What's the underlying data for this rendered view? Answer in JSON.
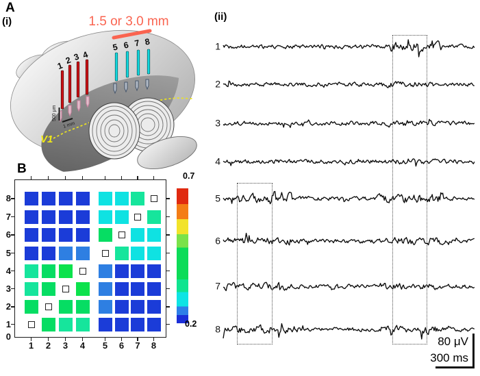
{
  "figure": {
    "panel_a": "A",
    "panel_i": "(i)",
    "panel_ii_label": "(ii)",
    "panel_b": "B"
  },
  "panel_i": {
    "distance_label": "1.5 or 3.0 mm",
    "region_label": "V1",
    "depth_scale": "500 μm",
    "spacing_scale": "1 mm",
    "electrode_labels_red": [
      "1",
      "2",
      "3",
      "4"
    ],
    "electrode_labels_cyan": [
      "5",
      "6",
      "7",
      "8"
    ],
    "colors": {
      "salmon": "#fa6450",
      "electrode_red": "#cf1216",
      "electrode_cyan": "#12d9de",
      "v1_yellow": "#f2ea16",
      "dashed_line_yellow": "#ece41e"
    }
  },
  "panel_ii": {
    "trace_labels": [
      "1",
      "2",
      "3",
      "4",
      "5",
      "6",
      "7",
      "8"
    ],
    "voltage_scale": "80 μV",
    "time_scale": "300 ms"
  },
  "chart_data": {
    "type": "heatmap",
    "title": "",
    "description": "Pairwise correlation between electrodes 1-8; diagonal self-pairs drawn as small open squares",
    "x_categories": [
      "1",
      "2",
      "3",
      "4",
      "5",
      "6",
      "7",
      "8"
    ],
    "y_categories": [
      "1",
      "2",
      "3",
      "4",
      "5",
      "6",
      "7",
      "8"
    ],
    "y_axis_extra_label": "0",
    "values_rows_bottom_to_top": [
      [
        null,
        0.45,
        0.42,
        0.42,
        0.24,
        0.24,
        0.24,
        0.24
      ],
      [
        0.45,
        null,
        0.45,
        0.45,
        0.31,
        0.24,
        0.24,
        0.24
      ],
      [
        0.42,
        0.45,
        null,
        0.47,
        0.31,
        0.24,
        0.24,
        0.24
      ],
      [
        0.42,
        0.45,
        0.47,
        null,
        0.31,
        0.24,
        0.24,
        0.24
      ],
      [
        0.24,
        0.24,
        0.31,
        0.31,
        null,
        0.42,
        0.37,
        0.37
      ],
      [
        0.24,
        0.24,
        0.24,
        0.24,
        0.45,
        null,
        0.37,
        0.37
      ],
      [
        0.24,
        0.24,
        0.24,
        0.24,
        0.37,
        0.37,
        null,
        0.42
      ],
      [
        0.24,
        0.24,
        0.24,
        0.24,
        0.37,
        0.37,
        0.42,
        null
      ]
    ],
    "cell_colors_rows_bottom_to_top": [
      [
        null,
        "#06dd63",
        "#16e59c",
        "#16e59c",
        "#1b3cd8",
        "#1b3cd8",
        "#1b3cd8",
        "#1b3cd8"
      ],
      [
        "#06dd63",
        null,
        "#06dd63",
        "#06dd63",
        "#2e7fe2",
        "#1b3cd8",
        "#1b3cd8",
        "#1b3cd8"
      ],
      [
        "#16e59c",
        "#06dd63",
        null,
        "#0ce24c",
        "#2e7fe2",
        "#1b3cd8",
        "#1b3cd8",
        "#1b3cd8"
      ],
      [
        "#16e59c",
        "#06dd63",
        "#0ce24c",
        null,
        "#2e7fe2",
        "#1b3cd8",
        "#1b3cd8",
        "#1b3cd8"
      ],
      [
        "#1b3cd8",
        "#1b3cd8",
        "#2e7fe2",
        "#2e7fe2",
        null,
        "#16e59c",
        "#0fe2e2",
        "#0fe2e2"
      ],
      [
        "#1b3cd8",
        "#1b3cd8",
        "#1b3cd8",
        "#1b3cd8",
        "#06dd63",
        null,
        "#0fe2e2",
        "#0fe2e2"
      ],
      [
        "#1b3cd8",
        "#1b3cd8",
        "#1b3cd8",
        "#1b3cd8",
        "#0fe2e2",
        "#0fe2e2",
        null,
        "#16e59c"
      ],
      [
        "#1b3cd8",
        "#1b3cd8",
        "#1b3cd8",
        "#1b3cd8",
        "#0fe2e2",
        "#0fe2e2",
        "#16e59c",
        null
      ]
    ],
    "colorbar": {
      "min": 0.2,
      "max": 0.7,
      "min_label": "0.2",
      "max_label": "0.7",
      "segments_top_to_bottom": [
        "#e02a10",
        "#f47d16",
        "#f2e32a",
        "#7ae24a",
        "#0cdc58",
        "#0fe490",
        "#0ee4e4",
        "#2e7fe8",
        "#1b2fd8"
      ]
    },
    "legend_position": "right",
    "grid": false
  }
}
